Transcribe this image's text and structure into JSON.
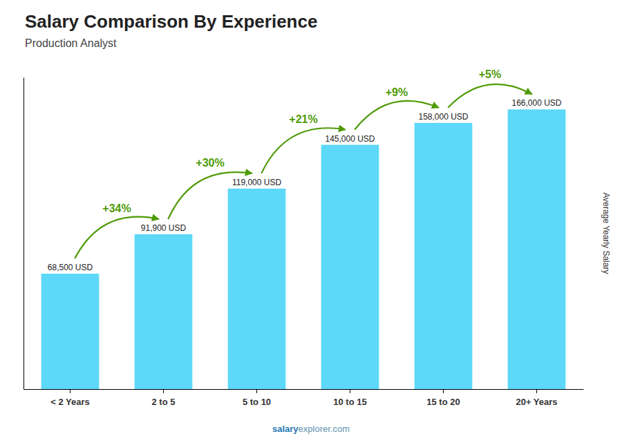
{
  "chart_data": {
    "type": "bar",
    "title": "Salary Comparison By Experience",
    "subtitle": "Production Analyst",
    "ylabel": "Average Yearly Salary",
    "categories": [
      "< 2 Years",
      "2 to 5",
      "5 to 10",
      "10 to 15",
      "15 to 20",
      "20+ Years"
    ],
    "values": [
      68500,
      91900,
      119000,
      145000,
      158000,
      166000
    ],
    "value_labels": [
      "68,500 USD",
      "91,900 USD",
      "119,000 USD",
      "145,000 USD",
      "158,000 USD",
      "166,000 USD"
    ],
    "data_labels": true,
    "color": "#5dd8f8",
    "ylim": [
      0,
      185000
    ],
    "tick_labels": "x",
    "grid": false,
    "annotations": [
      "+34%",
      "+30%",
      "+21%",
      "+9%",
      "+5%"
    ],
    "footer": [
      "salary",
      "explorer.com"
    ]
  }
}
